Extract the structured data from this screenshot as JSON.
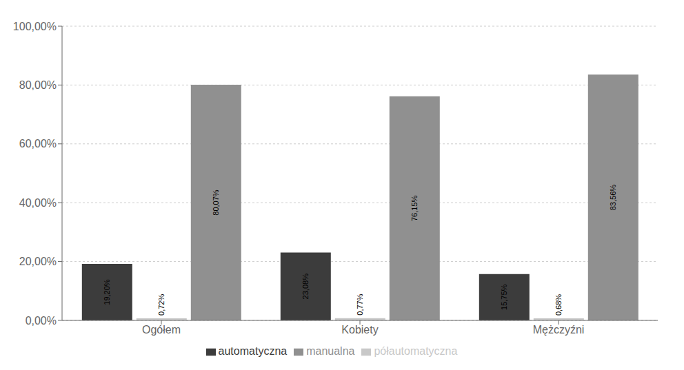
{
  "chart_data": {
    "type": "bar",
    "categories": [
      "Ogółem",
      "Kobiety",
      "Mężczyźni"
    ],
    "series": [
      {
        "name": "automatyczna",
        "color": "#3c3c3c",
        "values": [
          19.2,
          23.08,
          15.75
        ],
        "value_labels": [
          "19,20%",
          "23,08%",
          "15,75%"
        ]
      },
      {
        "name": "półautomatyczna",
        "color": "#c8c8c8",
        "values": [
          0.72,
          0.77,
          0.68
        ],
        "value_labels": [
          "0,72%",
          "0,77%",
          "0,68%"
        ]
      },
      {
        "name": "manualna",
        "color": "#909090",
        "values": [
          80.07,
          76.15,
          83.56
        ],
        "value_labels": [
          "80,07%",
          "76,15%",
          "83,56%"
        ]
      }
    ],
    "ylim": [
      0,
      100
    ],
    "yticks": [
      {
        "value": 0,
        "label": "0,00%"
      },
      {
        "value": 20,
        "label": "20,00%"
      },
      {
        "value": 40,
        "label": "40,00%"
      },
      {
        "value": 60,
        "label": "60,00%"
      },
      {
        "value": 80,
        "label": "80,00%"
      },
      {
        "value": 100,
        "label": "100,00%"
      }
    ],
    "grid": true,
    "legend": "bottom",
    "data_labels": true
  }
}
